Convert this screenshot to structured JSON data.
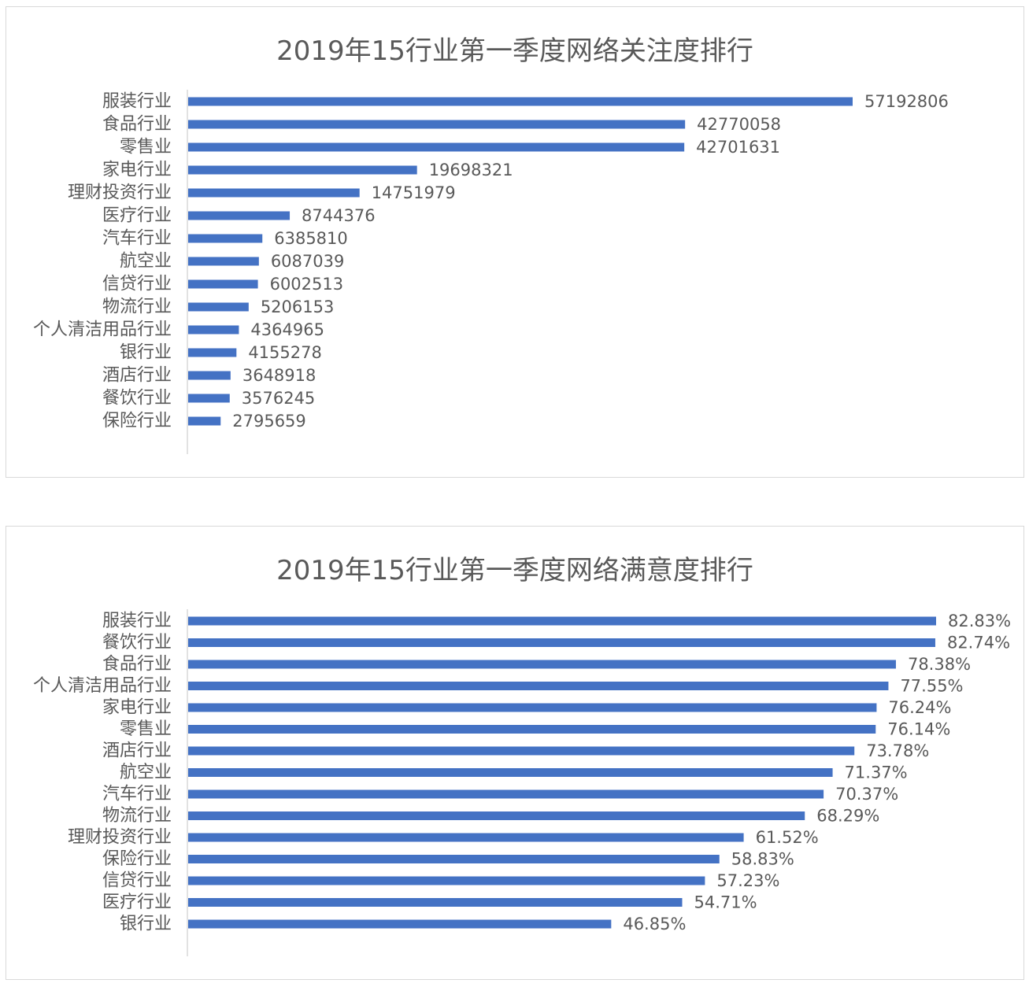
{
  "colors": {
    "bar": "#4472c4",
    "axis": "#d9d9d9",
    "text": "#595959",
    "border": "#d9d9d9"
  },
  "chart_data": [
    {
      "type": "bar",
      "orientation": "horizontal",
      "title": "2019年15行业第一季度网络关注度排行",
      "categories": [
        "服装行业",
        "食品行业",
        "零售业",
        "家电行业",
        "理财投资行业",
        "医疗行业",
        "汽车行业",
        "航空业",
        "信贷行业",
        "物流行业",
        "个人清洁用品行业",
        "银行业",
        "酒店行业",
        "餐饮行业",
        "保险行业"
      ],
      "values": [
        57192806,
        42770058,
        42701631,
        19698321,
        14751979,
        8744376,
        6385810,
        6087039,
        6002513,
        5206153,
        4364965,
        4155278,
        3648918,
        3576245,
        2795659
      ],
      "data_labels": [
        "57192806",
        "42770058",
        "42701631",
        "19698321",
        "14751979",
        "8744376",
        "6385810",
        "6087039",
        "6002513",
        "5206153",
        "4364965",
        "4155278",
        "3648918",
        "3576245",
        "2795659"
      ],
      "xlabel": "",
      "ylabel": "",
      "xlim": [
        0,
        57192806
      ],
      "grid": false,
      "legend": "none"
    },
    {
      "type": "bar",
      "orientation": "horizontal",
      "title": "2019年15行业第一季度网络满意度排行",
      "categories": [
        "服装行业",
        "餐饮行业",
        "食品行业",
        "个人清洁用品行业",
        "家电行业",
        "零售业",
        "酒店行业",
        "航空业",
        "汽车行业",
        "物流行业",
        "理财投资行业",
        "保险行业",
        "信贷行业",
        "医疗行业",
        "银行业"
      ],
      "values": [
        82.83,
        82.74,
        78.38,
        77.55,
        76.24,
        76.14,
        73.78,
        71.37,
        70.37,
        68.29,
        61.52,
        58.83,
        57.23,
        54.71,
        46.85
      ],
      "data_labels": [
        "82.83%",
        "82.74%",
        "78.38%",
        "77.55%",
        "76.24%",
        "76.14%",
        "73.78%",
        "71.37%",
        "70.37%",
        "68.29%",
        "61.52%",
        "58.83%",
        "57.23%",
        "54.71%",
        "46.85%"
      ],
      "xlabel": "",
      "ylabel": "",
      "xlim": [
        0,
        82.83
      ],
      "grid": false,
      "legend": "none"
    }
  ]
}
